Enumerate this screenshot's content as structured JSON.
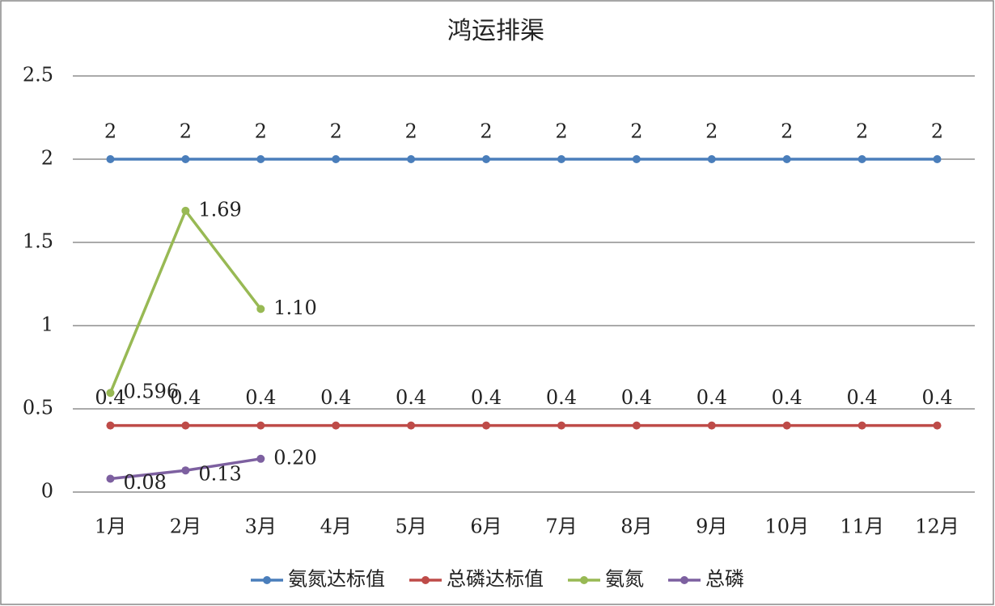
{
  "chart_data": {
    "type": "line",
    "title": "鸿运排渠",
    "categories": [
      "1月",
      "2月",
      "3月",
      "4月",
      "5月",
      "6月",
      "7月",
      "8月",
      "9月",
      "10月",
      "11月",
      "12月"
    ],
    "series": [
      {
        "name": "氨氮达标值",
        "color": "#4a7ebb",
        "values": [
          2,
          2,
          2,
          2,
          2,
          2,
          2,
          2,
          2,
          2,
          2,
          2
        ]
      },
      {
        "name": "总磷达标值",
        "color": "#be4b48",
        "values": [
          0.4,
          0.4,
          0.4,
          0.4,
          0.4,
          0.4,
          0.4,
          0.4,
          0.4,
          0.4,
          0.4,
          0.4
        ]
      },
      {
        "name": "氨氮",
        "color": "#98b954",
        "values": [
          0.596,
          1.69,
          1.1,
          null,
          null,
          null,
          null,
          null,
          null,
          null,
          null,
          null
        ],
        "value_labels": [
          "0.596",
          "1.69",
          "1.10",
          null,
          null,
          null,
          null,
          null,
          null,
          null,
          null,
          null
        ]
      },
      {
        "name": "总磷",
        "color": "#7d60a0",
        "values": [
          0.08,
          0.13,
          0.2,
          null,
          null,
          null,
          null,
          null,
          null,
          null,
          null,
          null
        ],
        "value_labels": [
          "0.08",
          "0.13",
          "0.20",
          null,
          null,
          null,
          null,
          null,
          null,
          null,
          null,
          null
        ]
      }
    ],
    "ylim": [
      0,
      2.5
    ],
    "yticks": [
      0,
      0.5,
      1,
      1.5,
      2,
      2.5
    ],
    "grid": true,
    "legend": "bottom"
  }
}
